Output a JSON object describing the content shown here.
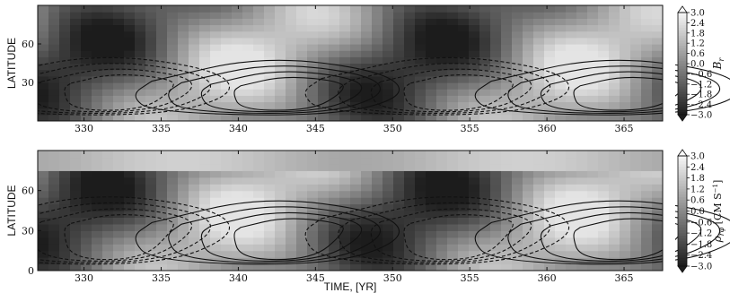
{
  "chart_data": [
    {
      "type": "heatmap",
      "panel": "top",
      "ylabel": "LATITUDE",
      "xlim": [
        327,
        367.5
      ],
      "ylim": [
        0,
        90
      ],
      "x_ticks": [
        330,
        335,
        340,
        345,
        350,
        355,
        360,
        365
      ],
      "y_ticks": [
        30,
        60
      ],
      "colorbar": {
        "label": "B_r",
        "label_parts": {
          "base": "B",
          "sub": "r"
        },
        "ticks": [
          "3.0",
          "2.4",
          "1.8",
          "1.2",
          "0.6",
          "0.0",
          "−0.6",
          "−1.2",
          "−1.8",
          "−2.4",
          "−3.0"
        ],
        "range": [
          -3.0,
          3.0
        ]
      },
      "cycle_period_yr": 22,
      "contours": {
        "positive_solid_centers": [
          {
            "t": 344,
            "lat": 25
          },
          {
            "t": 366,
            "lat": 25
          }
        ],
        "negative_dashed_centers": [
          {
            "t": 333,
            "lat": 27
          },
          {
            "t": 355,
            "lat": 27
          }
        ]
      },
      "grid": false
    },
    {
      "type": "heatmap",
      "panel": "bottom",
      "xlabel": "TIME, [YR]",
      "ylabel": "LATITUDE",
      "xlim": [
        327,
        367.5
      ],
      "ylim": [
        0,
        90
      ],
      "x_ticks": [
        330,
        335,
        340,
        345,
        350,
        355,
        360,
        365
      ],
      "y_ticks": [
        0,
        30,
        60
      ],
      "colorbar": {
        "label": "ρ_{rφ} [CM S^{-1}]",
        "label_parts": {
          "base": "ρ",
          "sub": "rφ",
          "units": "[CM S",
          "exp": "−1",
          "close": "]"
        },
        "ticks": [
          "3.0",
          "2.4",
          "1.8",
          "1.2",
          "0.6",
          "0.0",
          "−0.6",
          "−1.2",
          "−1.8",
          "−2.4",
          "−3.0"
        ],
        "range": [
          -3.0,
          3.0
        ]
      },
      "cycle_period_yr": 22,
      "contours": {
        "positive_solid_centers": [
          {
            "t": 344,
            "lat": 30
          },
          {
            "t": 366,
            "lat": 30
          }
        ],
        "negative_dashed_centers": [
          {
            "t": 333,
            "lat": 33
          },
          {
            "t": 355,
            "lat": 33
          }
        ]
      },
      "grid": false
    }
  ]
}
